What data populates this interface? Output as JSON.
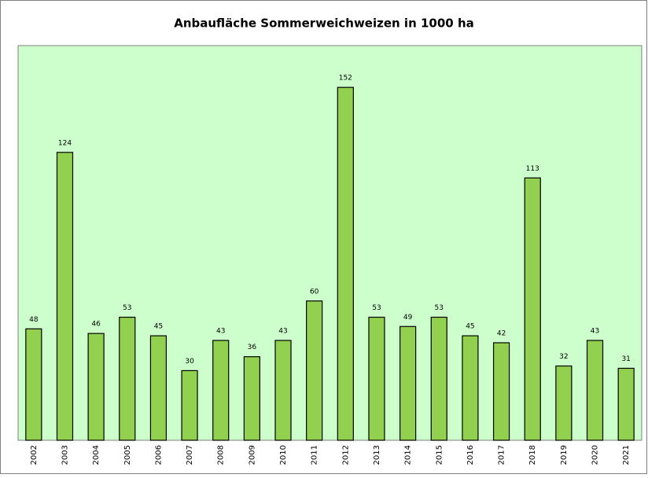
{
  "chart_data": {
    "type": "bar",
    "title": "Anbaufläche Sommerweichweizen in 1000 ha",
    "categories": [
      "2002",
      "2003",
      "2004",
      "2005",
      "2006",
      "2007",
      "2008",
      "2009",
      "2010",
      "2011",
      "2012",
      "2013",
      "2014",
      "2015",
      "2016",
      "2017",
      "2018",
      "2019",
      "2020",
      "2021"
    ],
    "values": [
      48,
      124,
      46,
      53,
      45,
      30,
      43,
      36,
      43,
      60,
      152,
      53,
      49,
      53,
      45,
      42,
      113,
      32,
      43,
      31
    ],
    "color": "#92d050",
    "ylim": [
      0,
      170
    ]
  }
}
